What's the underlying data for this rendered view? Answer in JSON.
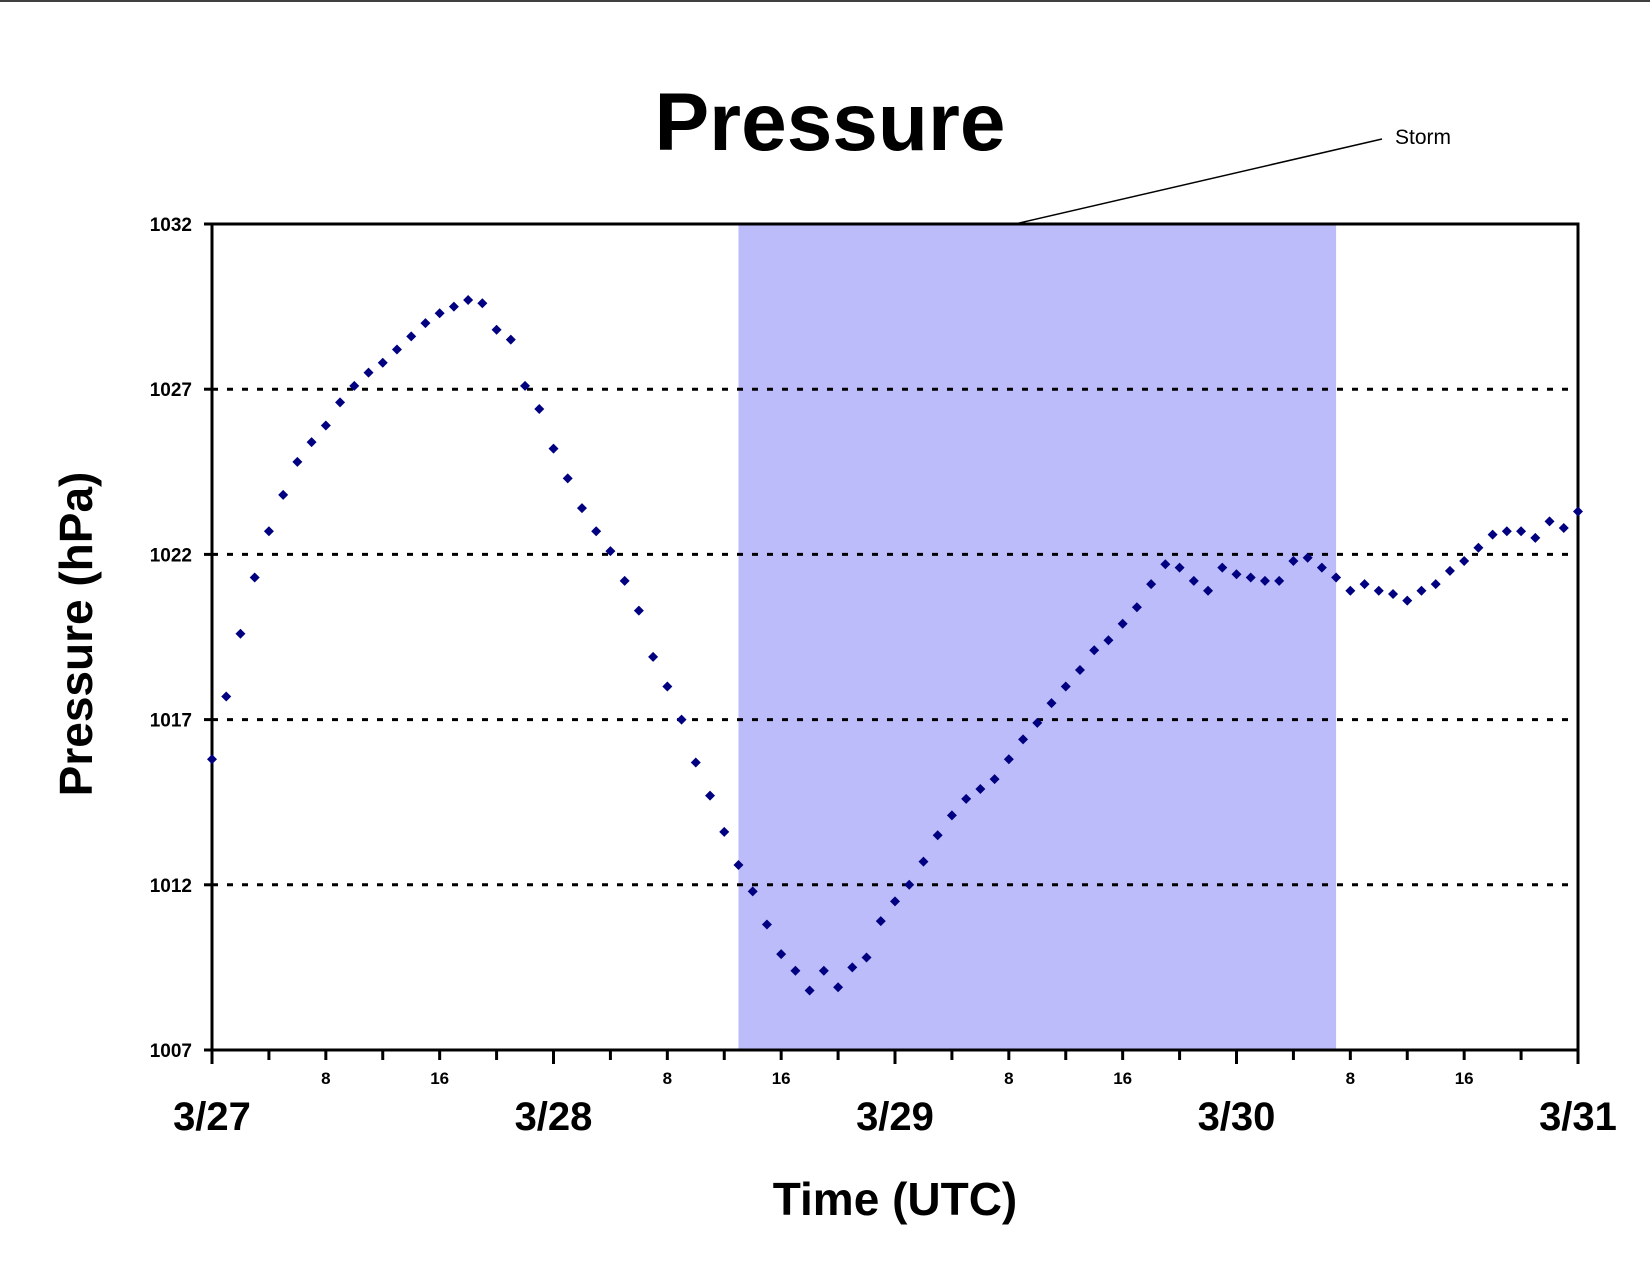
{
  "chart_data": {
    "type": "scatter",
    "title": "Pressure",
    "xlabel": "Time (UTC)",
    "ylabel": "Pressure (hPa)",
    "ylim": [
      1007,
      1032
    ],
    "xlim": [
      "3/27 00:00",
      "3/31 00:00"
    ],
    "yticks": [
      "1007",
      "1012",
      "1017",
      "1022",
      "1027",
      "1032"
    ],
    "x_major_labels": [
      "3/27",
      "3/28",
      "3/29",
      "3/30",
      "3/31"
    ],
    "x_minor_labels": [
      "8",
      "16"
    ],
    "grid": "horizontal dotted",
    "marker_color": "#000080",
    "shaded_region": {
      "label": "Storm",
      "x_start": "3/28 13:00",
      "x_end": "3/30 07:00",
      "color": "#bcbcfa"
    },
    "series": [
      {
        "x": [
          "3/27 00:00",
          "3/27 01:00",
          "3/27 02:00",
          "3/27 03:00",
          "3/27 04:00",
          "3/27 05:00",
          "3/27 06:00",
          "3/27 07:00",
          "3/27 08:00",
          "3/27 09:00",
          "3/27 10:00",
          "3/27 11:00",
          "3/27 12:00",
          "3/27 13:00",
          "3/27 14:00",
          "3/27 15:00",
          "3/27 16:00",
          "3/27 17:00",
          "3/27 18:00",
          "3/27 19:00",
          "3/27 20:00",
          "3/27 21:00",
          "3/27 22:00",
          "3/27 23:00",
          "3/28 00:00",
          "3/28 01:00",
          "3/28 02:00",
          "3/28 03:00",
          "3/28 04:00",
          "3/28 05:00",
          "3/28 06:00",
          "3/28 07:00",
          "3/28 08:00",
          "3/28 09:00",
          "3/28 10:00",
          "3/28 11:00",
          "3/28 12:00",
          "3/28 13:00",
          "3/28 14:00",
          "3/28 15:00",
          "3/28 16:00",
          "3/28 17:00",
          "3/28 18:00",
          "3/28 19:00",
          "3/28 20:00",
          "3/28 21:00",
          "3/28 22:00",
          "3/28 23:00",
          "3/29 00:00",
          "3/29 01:00",
          "3/29 02:00",
          "3/29 03:00",
          "3/29 04:00",
          "3/29 05:00",
          "3/29 06:00",
          "3/29 07:00",
          "3/29 08:00",
          "3/29 09:00",
          "3/29 10:00",
          "3/29 11:00",
          "3/29 12:00",
          "3/29 13:00",
          "3/29 14:00",
          "3/29 15:00",
          "3/29 16:00",
          "3/29 17:00",
          "3/29 18:00",
          "3/29 19:00",
          "3/29 20:00",
          "3/29 21:00",
          "3/29 22:00",
          "3/29 23:00",
          "3/30 00:00",
          "3/30 01:00",
          "3/30 02:00",
          "3/30 03:00",
          "3/30 04:00",
          "3/30 05:00",
          "3/30 06:00",
          "3/30 07:00",
          "3/30 08:00",
          "3/30 09:00",
          "3/30 10:00",
          "3/30 11:00",
          "3/30 12:00",
          "3/30 13:00",
          "3/30 14:00",
          "3/30 15:00",
          "3/30 16:00",
          "3/30 17:00",
          "3/30 18:00",
          "3/30 19:00",
          "3/30 20:00",
          "3/30 21:00",
          "3/30 22:00",
          "3/30 23:00",
          "3/31 00:00"
        ],
        "values": [
          1015.8,
          1017.7,
          1019.6,
          1021.3,
          1022.7,
          1023.8,
          1024.8,
          1025.4,
          1025.9,
          1026.6,
          1027.1,
          1027.5,
          1027.8,
          1028.2,
          1028.6,
          1029.0,
          1029.3,
          1029.5,
          1029.7,
          1029.6,
          1028.8,
          1028.5,
          1027.1,
          1026.4,
          1025.2,
          1024.3,
          1023.4,
          1022.7,
          1022.1,
          1021.2,
          1020.3,
          1018.9,
          1018.0,
          1017.0,
          1015.7,
          1014.7,
          1013.6,
          1012.6,
          1011.8,
          1010.8,
          1009.9,
          1009.4,
          1008.8,
          1009.4,
          1008.9,
          1009.5,
          1009.8,
          1010.9,
          1011.5,
          1012.0,
          1012.7,
          1013.5,
          1014.1,
          1014.6,
          1014.9,
          1015.2,
          1015.8,
          1016.4,
          1016.9,
          1017.5,
          1018.0,
          1018.5,
          1019.1,
          1019.4,
          1019.9,
          1020.4,
          1021.1,
          1021.7,
          1021.6,
          1021.2,
          1020.9,
          1021.6,
          1021.4,
          1021.3,
          1021.2,
          1021.2,
          1021.8,
          1021.9,
          1021.6,
          1021.3,
          1020.9,
          1021.1,
          1020.9,
          1020.8,
          1020.6,
          1020.9,
          1021.1,
          1021.5,
          1021.8,
          1022.2,
          1022.6,
          1022.7,
          1022.7,
          1022.5,
          1023.0,
          1022.8,
          1023.3
        ]
      }
    ]
  }
}
